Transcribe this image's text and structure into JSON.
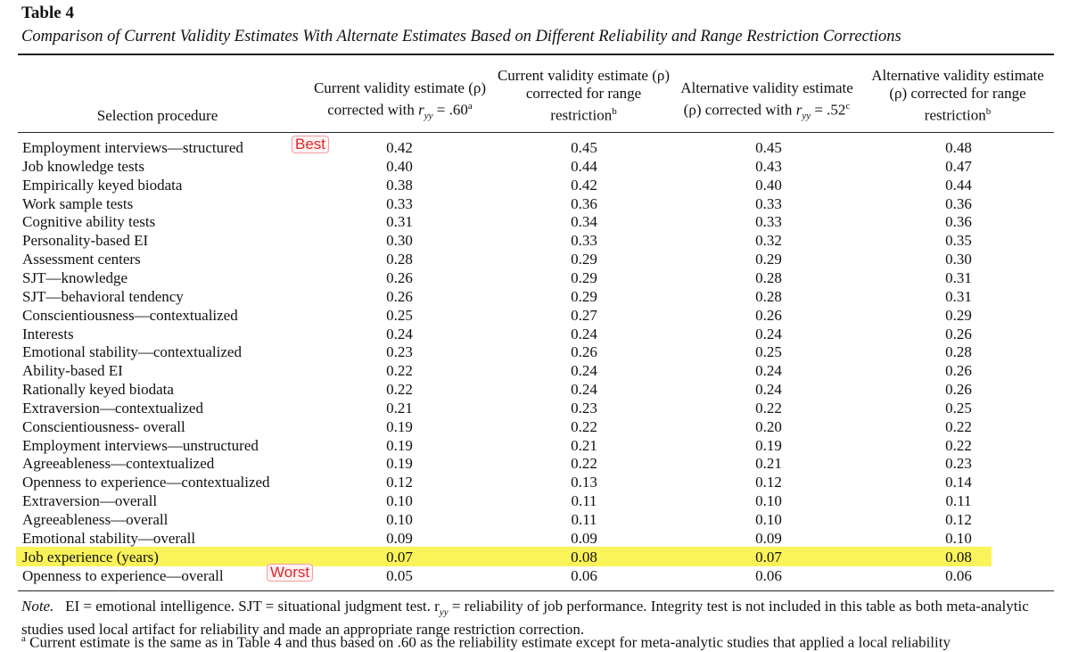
{
  "header": {
    "title": "Table 4",
    "subtitle": "Comparison of Current Validity Estimates With Alternate Estimates Based on Different Reliability and Range Restriction Corrections"
  },
  "table": {
    "stub_head": "Selection procedure",
    "columns": [
      {
        "text": "Current validity estimate (ρ) corrected with",
        "var": "r",
        "sub": "yy",
        "rest": "= .60",
        "sup": "a"
      },
      {
        "text": "Current validity estimate (ρ) corrected for range restriction",
        "sup": "b"
      },
      {
        "text": "Alternative validity estimate (ρ) corrected with",
        "var": "r",
        "sub": "yy",
        "rest": "= .52",
        "sup": "c"
      },
      {
        "text": "Alternative validity estimate (ρ) corrected for range restriction",
        "sup": "b"
      }
    ],
    "rows": [
      {
        "procedure": "Employment interviews—structured",
        "values": [
          "0.42",
          "0.45",
          "0.45",
          "0.48"
        ],
        "annotation": "Best"
      },
      {
        "procedure": "Job knowledge tests",
        "values": [
          "0.40",
          "0.44",
          "0.43",
          "0.47"
        ]
      },
      {
        "procedure": "Empirically keyed biodata",
        "values": [
          "0.38",
          "0.42",
          "0.40",
          "0.44"
        ]
      },
      {
        "procedure": "Work sample tests",
        "values": [
          "0.33",
          "0.36",
          "0.33",
          "0.36"
        ]
      },
      {
        "procedure": "Cognitive ability tests",
        "values": [
          "0.31",
          "0.34",
          "0.33",
          "0.36"
        ]
      },
      {
        "procedure": "Personality-based EI",
        "values": [
          "0.30",
          "0.33",
          "0.32",
          "0.35"
        ]
      },
      {
        "procedure": "Assessment centers",
        "values": [
          "0.28",
          "0.29",
          "0.29",
          "0.30"
        ]
      },
      {
        "procedure": "SJT—knowledge",
        "values": [
          "0.26",
          "0.29",
          "0.28",
          "0.31"
        ]
      },
      {
        "procedure": "SJT—behavioral tendency",
        "values": [
          "0.26",
          "0.29",
          "0.28",
          "0.31"
        ]
      },
      {
        "procedure": "Conscientiousness—contextualized",
        "values": [
          "0.25",
          "0.27",
          "0.26",
          "0.29"
        ]
      },
      {
        "procedure": "Interests",
        "values": [
          "0.24",
          "0.24",
          "0.24",
          "0.26"
        ]
      },
      {
        "procedure": "Emotional stability—contextualized",
        "values": [
          "0.23",
          "0.26",
          "0.25",
          "0.28"
        ]
      },
      {
        "procedure": "Ability-based EI",
        "values": [
          "0.22",
          "0.24",
          "0.24",
          "0.26"
        ]
      },
      {
        "procedure": "Rationally keyed biodata",
        "values": [
          "0.22",
          "0.24",
          "0.24",
          "0.26"
        ]
      },
      {
        "procedure": "Extraversion—contextualized",
        "values": [
          "0.21",
          "0.23",
          "0.22",
          "0.25"
        ]
      },
      {
        "procedure": "Conscientiousness- overall",
        "values": [
          "0.19",
          "0.22",
          "0.20",
          "0.22"
        ]
      },
      {
        "procedure": "Employment interviews—unstructured",
        "values": [
          "0.19",
          "0.21",
          "0.19",
          "0.22"
        ]
      },
      {
        "procedure": "Agreeableness—contextualized",
        "values": [
          "0.19",
          "0.22",
          "0.21",
          "0.23"
        ]
      },
      {
        "procedure": "Openness to experience—contextualized",
        "values": [
          "0.12",
          "0.13",
          "0.12",
          "0.14"
        ]
      },
      {
        "procedure": "Extraversion—overall",
        "values": [
          "0.10",
          "0.11",
          "0.10",
          "0.11"
        ]
      },
      {
        "procedure": "Agreeableness—overall",
        "values": [
          "0.10",
          "0.11",
          "0.10",
          "0.12"
        ]
      },
      {
        "procedure": "Emotional stability—overall",
        "values": [
          "0.09",
          "0.09",
          "0.09",
          "0.10"
        ]
      },
      {
        "procedure": "Job experience (years)",
        "values": [
          "0.07",
          "0.08",
          "0.07",
          "0.08"
        ],
        "highlighted": true
      },
      {
        "procedure": "Openness to experience—overall",
        "values": [
          "0.05",
          "0.06",
          "0.06",
          "0.06"
        ],
        "annotation": "Worst"
      }
    ]
  },
  "note": {
    "label": "Note.",
    "text1": "EI = emotional intelligence. SJT = situational judgment test.",
    "var": "r",
    "sub": "yy",
    "text2": "= reliability of job performance. Integrity test is not included in this table as both meta-analytic studies used local artifact for reliability and made an appropriate range restriction correction."
  },
  "footnote": {
    "mark": "a",
    "text": "Current estimate is the same as in Table 4 and thus based on .60 as the reliability estimate except for meta-analytic studies that applied a local reliability"
  }
}
